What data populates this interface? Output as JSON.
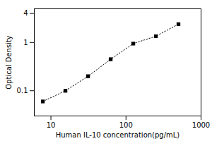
{
  "chart_data": {
    "type": "line",
    "x": [
      7.8,
      15.6,
      31.25,
      62.5,
      125,
      250,
      500
    ],
    "values": [
      0.06,
      0.1,
      0.2,
      0.45,
      0.95,
      1.35,
      2.4
    ],
    "color": "black",
    "marker": "square",
    "line_style": "dotted",
    "log": true,
    "xlim": [
      6,
      1000
    ],
    "ylim": [
      0.03,
      5
    ],
    "xticks": [
      10,
      100,
      1000
    ],
    "yticks": [
      0.1,
      1,
      4
    ],
    "xlabel": "Human IL-10 concentration(pg/mL)",
    "ylabel": "Optical Density"
  }
}
